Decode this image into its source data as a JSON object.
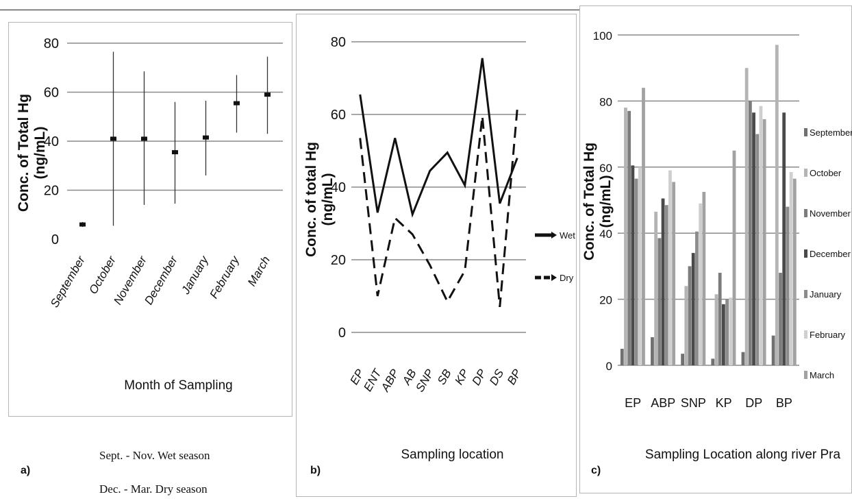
{
  "chart_data": [
    {
      "type": "scatter",
      "panel": "a)",
      "categories": [
        "September",
        "October",
        "November",
        "December",
        "January",
        "February",
        "March"
      ],
      "values": [
        6,
        41,
        41,
        35.5,
        41.5,
        55.5,
        59
      ],
      "error_low": [
        5,
        5.5,
        14,
        14.5,
        26,
        43.5,
        43
      ],
      "error_high": [
        7,
        76.5,
        68.5,
        56,
        56.5,
        67,
        74.5
      ],
      "ylabel": "Conc. of Total  Hg (ng/mL)",
      "xlabel": "Month of Sampling",
      "ylim": [
        0,
        80
      ],
      "yticks": [
        0,
        20,
        40,
        60,
        80
      ],
      "grid": true
    },
    {
      "type": "line",
      "panel": "b)",
      "categories": [
        "EP",
        "ENT",
        "ABP",
        "AB",
        "SNP",
        "SB",
        "KP",
        "DP",
        "DS",
        "BP"
      ],
      "series": [
        {
          "name": "Wet",
          "values": [
            65.5,
            33,
            53.5,
            32.5,
            44.5,
            49.5,
            40.5,
            75.5,
            35.5,
            48
          ]
        },
        {
          "name": "Dry",
          "values": [
            53.5,
            10,
            31.5,
            27,
            18.5,
            8.5,
            17,
            59.5,
            7,
            61.5
          ]
        }
      ],
      "ylabel": "Conc. of total Hg (ng/mL)",
      "xlabel": "Sampling location",
      "ylim": [
        0,
        80
      ],
      "yticks": [
        0,
        20,
        40,
        60,
        80
      ],
      "legend_position": "right",
      "grid": true
    },
    {
      "type": "bar",
      "panel": "c)",
      "categories": [
        "EP",
        "ABP",
        "SNP",
        "KP",
        "DP",
        "BP"
      ],
      "series": [
        {
          "name": "September",
          "values": [
            5,
            8.5,
            3.5,
            2,
            4,
            9
          ],
          "color": "#707070"
        },
        {
          "name": "October",
          "values": [
            78,
            46.5,
            24,
            21.5,
            90,
            97
          ],
          "color": "#b4b4b4"
        },
        {
          "name": "November",
          "values": [
            77,
            38.5,
            30,
            28,
            80,
            28
          ],
          "color": "#7c7c7c"
        },
        {
          "name": "December",
          "values": [
            60.5,
            50.5,
            34,
            18.5,
            76.5,
            76.5
          ],
          "color": "#4a4a4a"
        },
        {
          "name": "January",
          "values": [
            56.5,
            48.5,
            40.5,
            20,
            70,
            48
          ],
          "color": "#8c8c8c"
        },
        {
          "name": "February",
          "values": [
            60,
            59,
            49,
            20.5,
            78.5,
            58.5
          ],
          "color": "#cfcfcf"
        },
        {
          "name": "March",
          "values": [
            84,
            55.5,
            52.5,
            65,
            74.5,
            56.5
          ],
          "color": "#a2a2a2"
        }
      ],
      "ylabel": "Conc. of Total  Hg (ng/mL)",
      "xlabel": "Sampling Location along river Pra",
      "ylim": [
        0,
        100
      ],
      "yticks": [
        0,
        20,
        40,
        60,
        80,
        100
      ],
      "legend_position": "right",
      "grid": true
    }
  ],
  "season_note": {
    "wet": "Sept. - Nov. Wet season",
    "dry": "Dec. - Mar.  Dry season"
  }
}
